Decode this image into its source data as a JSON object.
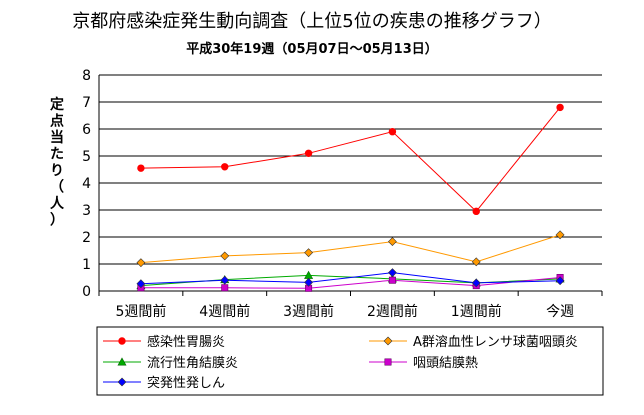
{
  "chart_data": {
    "type": "line",
    "title": "京都府感染症発生動向調査（上位5位の疾患の推移グラフ）",
    "subtitle": "平成30年19週（05月07日～05月13日）",
    "ylabel": "定点当たり（人）",
    "xlabel": "",
    "ylim": [
      0,
      8
    ],
    "yticks": [
      0,
      1,
      2,
      3,
      4,
      5,
      6,
      7,
      8
    ],
    "grid": true,
    "legend_position": "bottom",
    "categories": [
      "5週間前",
      "4週間前",
      "3週間前",
      "2週間前",
      "1週間前",
      "今週"
    ],
    "series": [
      {
        "name": "感染性胃腸炎",
        "values": [
          4.55,
          4.6,
          5.1,
          5.9,
          2.95,
          6.8
        ],
        "color": "#ff0000",
        "marker": "circle"
      },
      {
        "name": "A群溶血性レンサ球菌咽頭炎",
        "values": [
          1.05,
          1.3,
          1.42,
          1.83,
          1.08,
          2.08
        ],
        "color": "#ff9900",
        "marker": "diamond"
      },
      {
        "name": "流行性角結膜炎",
        "values": [
          0.2,
          0.42,
          0.58,
          0.45,
          0.3,
          0.45
        ],
        "color": "#00aa00",
        "marker": "triangle"
      },
      {
        "name": "咽頭結膜熱",
        "values": [
          0.12,
          0.12,
          0.1,
          0.4,
          0.2,
          0.5
        ],
        "color": "#cc00cc",
        "marker": "square"
      },
      {
        "name": "突発性発しん",
        "values": [
          0.27,
          0.4,
          0.32,
          0.68,
          0.3,
          0.38
        ],
        "color": "#0000ff",
        "marker": "diamond"
      }
    ]
  }
}
